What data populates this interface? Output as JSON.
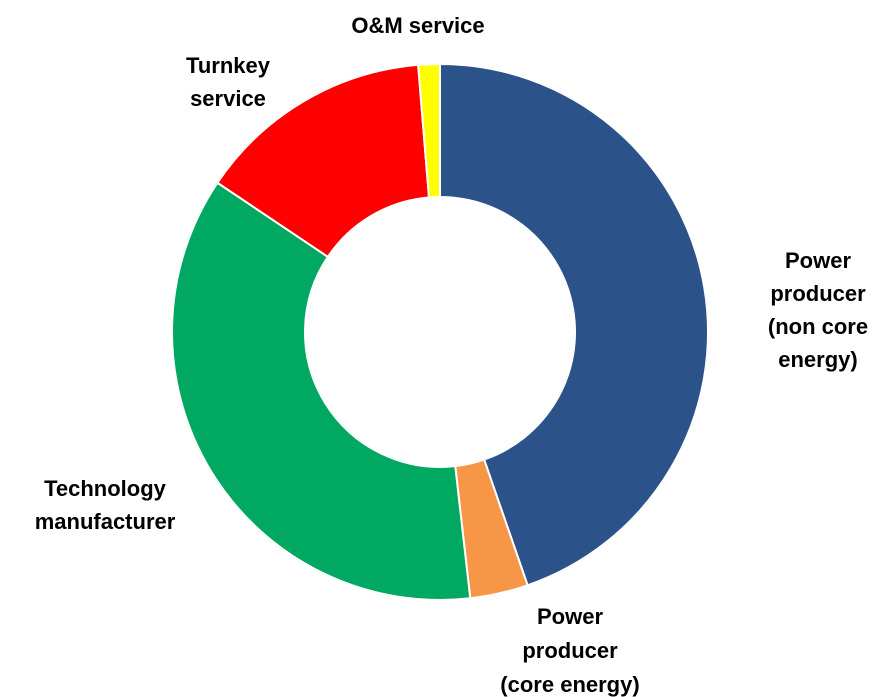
{
  "chart_data": {
    "type": "donut",
    "categories": [
      [
        "Power",
        "producer",
        "(non core",
        "energy)"
      ],
      [
        "Power",
        "producer",
        "(core energy)"
      ],
      [
        "Technology",
        "manufacturer"
      ],
      [
        "Turnkey",
        "service"
      ],
      [
        "O&M service"
      ]
    ],
    "values": [
      44.7,
      3.5,
      36.2,
      14.3,
      1.3
    ],
    "colors": [
      "#2b5389",
      "#f79646",
      "#00a862",
      "#ff0000",
      "#ffff00"
    ]
  }
}
